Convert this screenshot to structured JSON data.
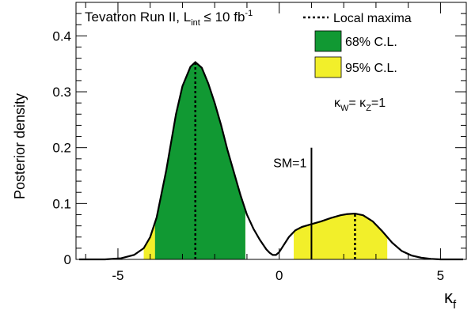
{
  "chart_data": {
    "type": "area",
    "ylabel": "Posterior density",
    "xlabel": "κ",
    "xlabel_sub": "f",
    "xlim": [
      -6.3,
      5.8
    ],
    "ylim": [
      0,
      0.46
    ],
    "xticks": [
      {
        "value": -5,
        "label": "-5"
      },
      {
        "value": 0,
        "label": "0"
      },
      {
        "value": 5,
        "label": "5"
      }
    ],
    "yticks": [
      {
        "value": 0,
        "label": "0"
      },
      {
        "value": 0.1,
        "label": "0.1"
      },
      {
        "value": 0.2,
        "label": "0.2"
      },
      {
        "value": 0.3,
        "label": "0.3"
      },
      {
        "value": 0.4,
        "label": "0.4"
      }
    ],
    "grid": false,
    "series": [
      {
        "x": [
          -6.2,
          -5.4,
          -4.9,
          -4.5,
          -4.2,
          -4.0,
          -3.8,
          -3.5,
          -3.2,
          -3.0,
          -2.75,
          -2.6,
          -2.4,
          -2.2,
          -2.0,
          -1.8,
          -1.6,
          -1.4,
          -1.2,
          -1.0,
          -0.8,
          -0.6,
          -0.4,
          -0.3,
          -0.2,
          -0.1,
          0.0,
          0.1,
          0.3,
          0.5,
          0.7,
          1.0,
          1.3,
          1.6,
          1.9,
          2.1,
          2.35,
          2.6,
          2.9,
          3.2,
          3.5,
          3.8,
          4.1,
          4.4,
          4.7,
          5.0,
          5.7
        ],
        "y": [
          0.0,
          0.0,
          0.002,
          0.008,
          0.02,
          0.04,
          0.075,
          0.16,
          0.26,
          0.31,
          0.345,
          0.353,
          0.343,
          0.315,
          0.28,
          0.24,
          0.195,
          0.155,
          0.115,
          0.08,
          0.055,
          0.035,
          0.018,
          0.012,
          0.008,
          0.008,
          0.013,
          0.022,
          0.04,
          0.052,
          0.058,
          0.063,
          0.068,
          0.074,
          0.079,
          0.081,
          0.082,
          0.079,
          0.068,
          0.05,
          0.03,
          0.015,
          0.007,
          0.003,
          0.001,
          0.0,
          0.0
        ]
      }
    ],
    "band_95": [
      [
        -4.2,
        -1.05
      ],
      [
        0.45,
        3.35
      ]
    ],
    "band_68": [
      [
        -3.85,
        -1.05
      ]
    ],
    "local_maxima_x": [
      -2.6,
      2.35
    ],
    "sm_x": 1,
    "sm_label": "SM=1",
    "colors": {
      "band_68": "#119933",
      "band_95": "#f2ef2a",
      "curve": "#000000"
    },
    "legend": {
      "placement": "top-right",
      "entries": [
        {
          "label": "Local maxima",
          "style": "dotted-line"
        },
        {
          "label": "68% C.L.",
          "style": "green-box"
        },
        {
          "label": "95% C.L.",
          "style": "yellow-box"
        }
      ]
    },
    "annotations": {
      "tevatron_pre": "Tevatron Run II, L",
      "tevatron_sub": "int",
      "tevatron_mid": " ≤ 10 fb",
      "tevatron_sup": "-1",
      "kappa_a": "κ",
      "kappa_a_sub": "W",
      "kappa_mid": "= κ",
      "kappa_b_sub": "Z",
      "kappa_end": "=1"
    }
  }
}
